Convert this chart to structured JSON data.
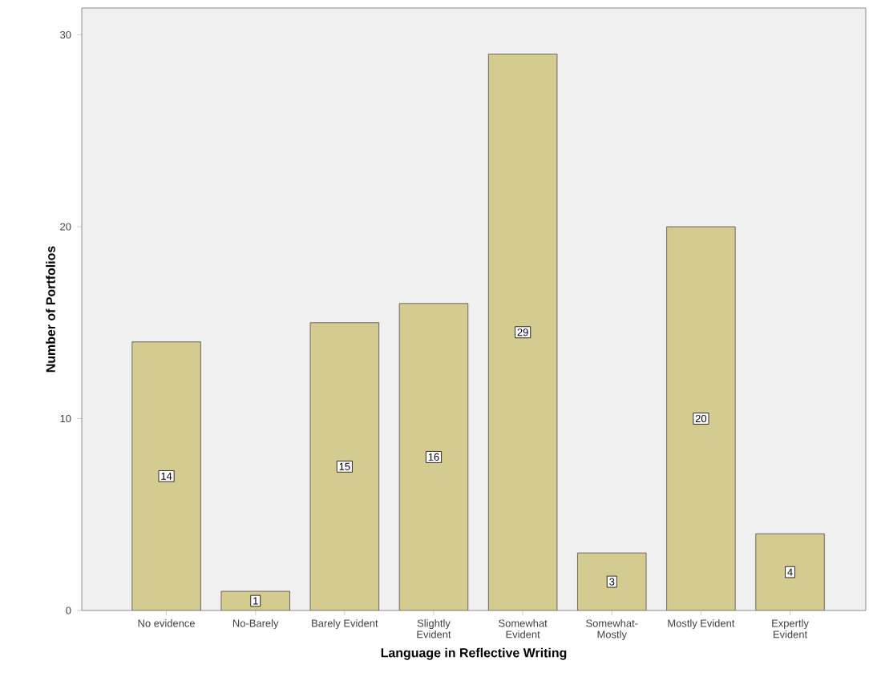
{
  "chart_data": {
    "type": "bar",
    "xlabel": "Language in Reflective Writing",
    "ylabel": "Number of Portfolios",
    "categories": [
      "No evidence",
      "No-Barely",
      "Barely Evident",
      "Slightly Evident",
      "Somewhat Evident",
      "Somewhat-Mostly",
      "Mostly Evident",
      "Expertly Evident"
    ],
    "values": [
      14,
      1,
      15,
      16,
      29,
      3,
      20,
      4
    ],
    "color": "#d3cb8f",
    "ylim": [
      0,
      31.4
    ],
    "yticks": [
      0,
      10,
      20,
      30
    ],
    "data_labels": true
  }
}
